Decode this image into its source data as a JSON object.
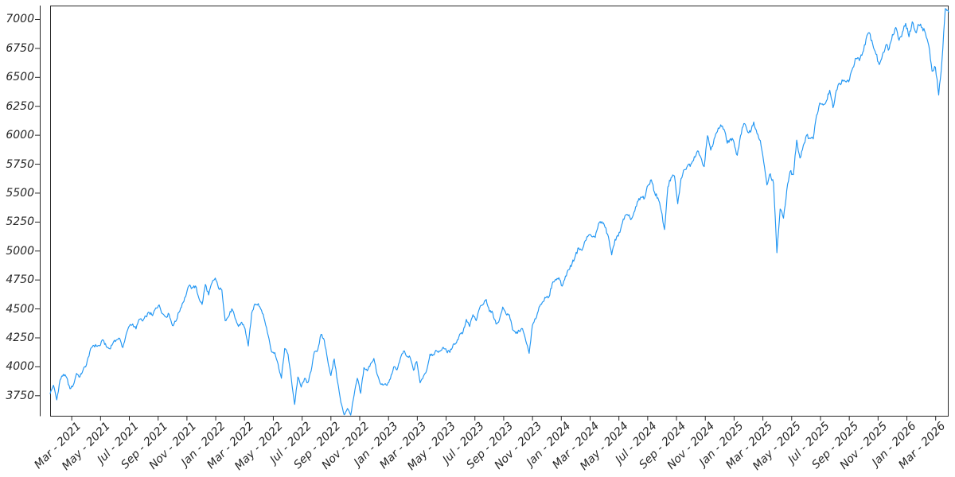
{
  "figure": {
    "background": "#ffffff",
    "axis_color": "#262626",
    "tick_label_color": "#262626"
  },
  "chart_data": {
    "type": "line",
    "title": "",
    "xlabel": "",
    "ylabel": "",
    "grid": false,
    "legend": null,
    "line_color": "#2196f3",
    "ylim": [
      3577,
      7120
    ],
    "y_ticks": [
      3750,
      4000,
      4250,
      4500,
      4750,
      5000,
      5250,
      5500,
      5750,
      6000,
      6250,
      6500,
      6750,
      7000
    ],
    "x_ticks": [
      "Mar - 2021",
      "May - 2021",
      "Jul - 2021",
      "Sep - 2021",
      "Nov - 2021",
      "Jan - 2022",
      "Mar - 2022",
      "May - 2022",
      "Jul - 2022",
      "Sep - 2022",
      "Nov - 2022",
      "Jan - 2023",
      "Mar - 2023",
      "May - 2023",
      "Jul - 2023",
      "Sep - 2023",
      "Nov - 2023",
      "Jan - 2024",
      "Mar - 2024",
      "May - 2024",
      "Jul - 2024",
      "Sep - 2024",
      "Nov - 2024",
      "Jan - 2025",
      "Mar - 2025",
      "May - 2025",
      "Jul - 2025",
      "Sep - 2025",
      "Nov - 2025",
      "Jan - 2026",
      "Mar - 2026"
    ],
    "x_axis": {
      "first_tick_month_offset": 1.5,
      "tick_step_months": 2,
      "span_months": 62.4
    },
    "sampling": "weekly",
    "values": [
      3768,
      3841,
      3714,
      3887,
      3935,
      3907,
      3811,
      3842,
      3943,
      3913,
      3975,
      4020,
      4129,
      4185,
      4180,
      4181,
      4233,
      4174,
      4156,
      4204,
      4230,
      4247,
      4166,
      4281,
      4352,
      4370,
      4327,
      4412,
      4395,
      4437,
      4468,
      4442,
      4509,
      4535,
      4459,
      4433,
      4455,
      4357,
      4391,
      4471,
      4545,
      4605,
      4698,
      4683,
      4698,
      4595,
      4538,
      4712,
      4621,
      4726,
      4766,
      4677,
      4663,
      4398,
      4432,
      4501,
      4419,
      4349,
      4385,
      4329,
      4180,
      4463,
      4543,
      4546,
      4488,
      4393,
      4272,
      4132,
      4123,
      4024,
      3901,
      4158,
      4109,
      3901,
      3675,
      3912,
      3825,
      3899,
      3863,
      3962,
      4130,
      4145,
      4280,
      4228,
      4058,
      3924,
      4067,
      3873,
      3693,
      3586,
      3640,
      3583,
      3753,
      3901,
      3771,
      3993,
      3965,
      4026,
      4072,
      3934,
      3852,
      3845,
      3840,
      3895,
      3999,
      3973,
      4071,
      4136,
      4090,
      4079,
      3970,
      4046,
      3862,
      3917,
      3971,
      4109,
      4105,
      4138,
      4134,
      4169,
      4136,
      4124,
      4192,
      4205,
      4282,
      4299,
      4410,
      4348,
      4450,
      4399,
      4505,
      4536,
      4582,
      4478,
      4464,
      4370,
      4406,
      4516,
      4457,
      4450,
      4320,
      4288,
      4309,
      4328,
      4224,
      4117,
      4358,
      4415,
      4514,
      4559,
      4595,
      4604,
      4719,
      4755,
      4770,
      4697,
      4784,
      4840,
      4891,
      4959,
      5027,
      5006,
      5089,
      5137,
      5124,
      5117,
      5234,
      5254,
      5204,
      5123,
      4967,
      5100,
      5128,
      5223,
      5303,
      5305,
      5278,
      5347,
      5432,
      5465,
      5460,
      5567,
      5615,
      5505,
      5459,
      5347,
      5186,
      5554,
      5635,
      5648,
      5408,
      5626,
      5703,
      5738,
      5751,
      5815,
      5865,
      5808,
      5729,
      5996,
      5871,
      5969,
      6032,
      6090,
      6051,
      5931,
      5971,
      5942,
      5827,
      5997,
      6101,
      6041,
      6026,
      6115,
      6013,
      5955,
      5770,
      5570,
      5668,
      5581,
      4985,
      5363,
      5283,
      5525,
      5687,
      5660,
      5958,
      5803,
      5912,
      6000,
      5977,
      5968,
      6173,
      6279,
      6260,
      6297,
      6389,
      6238,
      6389,
      6450,
      6467,
      6460,
      6481,
      6584,
      6664,
      6644,
      6716,
      6830,
      6885,
      6790,
      6700,
      6610,
      6700,
      6778,
      6746,
      6870,
      6931,
      6820,
      6890,
      6966,
      6850,
      6979,
      6890,
      6952,
      6930,
      6880,
      6773,
      6553,
      6587,
      6347,
      6654,
      7094,
      7062
    ]
  }
}
